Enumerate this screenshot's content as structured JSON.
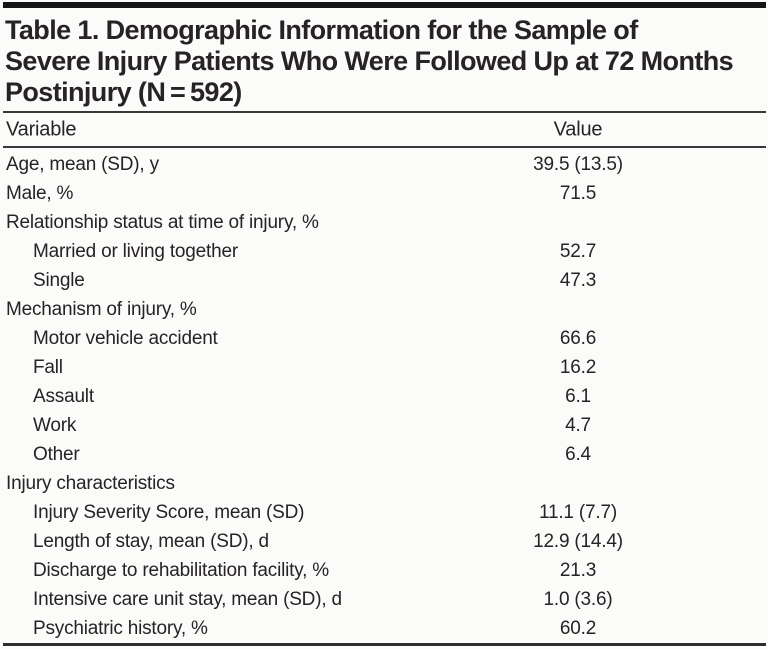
{
  "document": {
    "title_lines": [
      "Table 1. Demographic Information for the Sample of",
      "Severe Injury Patients Who Were Followed Up at 72 Months",
      "Postinjury (N = 592)"
    ],
    "header": {
      "variable": "Variable",
      "value": "Value"
    },
    "rows": [
      {
        "label": "Age, mean (SD), y",
        "value": "39.5 (13.5)",
        "indent": 0
      },
      {
        "label": "Male, %",
        "value": "71.5",
        "indent": 0
      },
      {
        "label": "Relationship status at time of injury, %",
        "value": "",
        "indent": 0
      },
      {
        "label": "Married or living together",
        "value": "52.7",
        "indent": 1
      },
      {
        "label": "Single",
        "value": "47.3",
        "indent": 1
      },
      {
        "label": "Mechanism of injury, %",
        "value": "",
        "indent": 0
      },
      {
        "label": "Motor vehicle accident",
        "value": "66.6",
        "indent": 1
      },
      {
        "label": "Fall",
        "value": "16.2",
        "indent": 1
      },
      {
        "label": "Assault",
        "value": "6.1",
        "indent": 1
      },
      {
        "label": "Work",
        "value": "4.7",
        "indent": 1
      },
      {
        "label": "Other",
        "value": "6.4",
        "indent": 1
      },
      {
        "label": "Injury characteristics",
        "value": "",
        "indent": 0
      },
      {
        "label": "Injury Severity Score, mean (SD)",
        "value": "11.1 (7.7)",
        "indent": 1
      },
      {
        "label": "Length of stay, mean (SD), d",
        "value": "12.9 (14.4)",
        "indent": 1
      },
      {
        "label": "Discharge to rehabilitation facility, %",
        "value": "21.3",
        "indent": 1
      },
      {
        "label": "Intensive care unit stay, mean (SD), d",
        "value": "1.0 (3.6)",
        "indent": 1
      },
      {
        "label": "Psychiatric history, %",
        "value": "60.2",
        "indent": 1
      }
    ]
  },
  "colors": {
    "text": "#272324",
    "rule": "#3b3738",
    "rule_heavy": "#2f2b2c",
    "top_bar": "#161314",
    "background": "#fbfbfa"
  }
}
